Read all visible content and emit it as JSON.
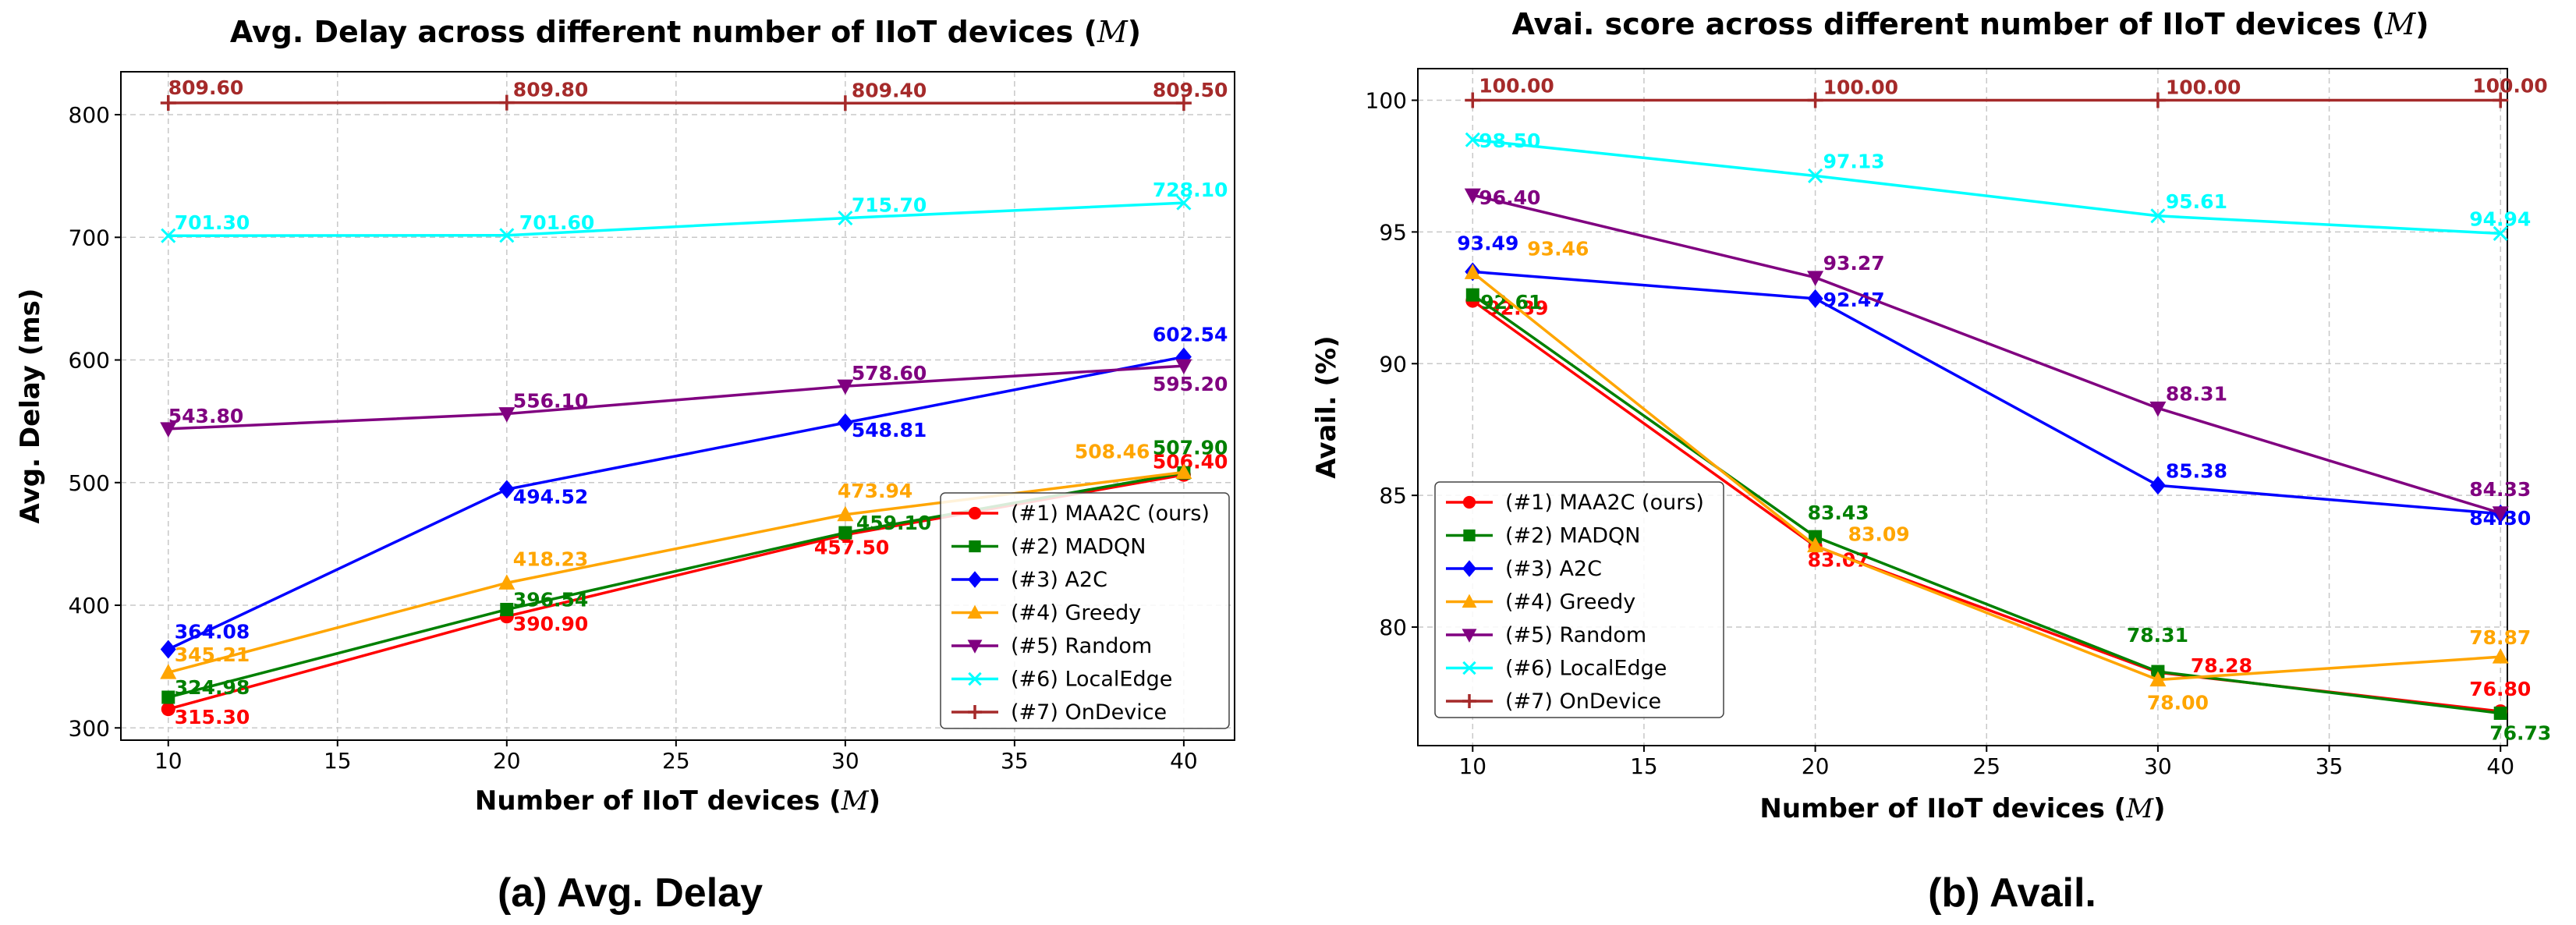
{
  "series_styles": [
    {
      "name": "(#1) MAA2C (ours)",
      "color": "#ff0000",
      "marker": "circle"
    },
    {
      "name": "(#2) MADQN",
      "color": "#008000",
      "marker": "square"
    },
    {
      "name": "(#3) A2C",
      "color": "#0000ff",
      "marker": "diamond"
    },
    {
      "name": "(#4) Greedy",
      "color": "#ffa500",
      "marker": "triangle-up"
    },
    {
      "name": "(#5) Random",
      "color": "#800080",
      "marker": "triangle-down"
    },
    {
      "name": "(#6) LocalEdge",
      "color": "#00ffff",
      "marker": "x"
    },
    {
      "name": "(#7) OnDevice",
      "color": "#a52a2a",
      "marker": "plus"
    }
  ],
  "chart_data": [
    {
      "type": "line",
      "title": "Avg. Delay across different number of IIoT devices (M)",
      "xlabel": "Number of IIoT devices (M)",
      "ylabel": "Avg. Delay (ms)",
      "caption": "(a) Avg. Delay",
      "x": [
        10,
        20,
        30,
        40
      ],
      "xlim": [
        8.6,
        41.5
      ],
      "ylim": [
        290,
        835
      ],
      "xticks": [
        10,
        15,
        20,
        25,
        30,
        35,
        40
      ],
      "yticks": [
        300,
        400,
        500,
        600,
        700,
        800
      ],
      "grid": true,
      "legend": "lower-right",
      "series": [
        {
          "name": "(#1) MAA2C (ours)",
          "values": [
            315.3,
            390.9,
            457.5,
            506.4
          ],
          "labels": [
            "315.30",
            "390.90",
            "457.50",
            "506.40"
          ]
        },
        {
          "name": "(#2) MADQN",
          "values": [
            324.98,
            396.54,
            459.1,
            507.9
          ],
          "labels": [
            "324.98",
            "396.54",
            "459.10",
            "507.90"
          ]
        },
        {
          "name": "(#3) A2C",
          "values": [
            364.08,
            494.52,
            548.81,
            602.54
          ],
          "labels": [
            "364.08",
            "494.52",
            "548.81",
            "602.54"
          ]
        },
        {
          "name": "(#4) Greedy",
          "values": [
            345.21,
            418.23,
            473.94,
            508.46
          ],
          "labels": [
            "345.21",
            "418.23",
            "473.94",
            "508.46"
          ]
        },
        {
          "name": "(#5) Random",
          "values": [
            543.8,
            556.1,
            578.6,
            595.2
          ],
          "labels": [
            "543.80",
            "556.10",
            "578.60",
            "595.20"
          ]
        },
        {
          "name": "(#6) LocalEdge",
          "values": [
            701.3,
            701.6,
            715.7,
            728.1
          ],
          "labels": [
            "701.30",
            "701.60",
            "715.70",
            "728.10"
          ]
        },
        {
          "name": "(#7) OnDevice",
          "values": [
            809.6,
            809.8,
            809.4,
            809.5
          ],
          "labels": [
            "809.60",
            "809.80",
            "809.40",
            "809.50"
          ]
        }
      ]
    },
    {
      "type": "line",
      "title": "Avai. score across different number of IIoT devices (M)",
      "xlabel": "Number of IIoT devices (M)",
      "ylabel": "Avail. (%)",
      "caption": "(b) Avail.",
      "x": [
        10,
        20,
        30,
        40
      ],
      "xlim": [
        8.4,
        40.2
      ],
      "ylim": [
        75.5,
        101.2
      ],
      "xticks": [
        10,
        15,
        20,
        25,
        30,
        35,
        40
      ],
      "yticks": [
        80,
        85,
        90,
        95,
        100
      ],
      "grid": true,
      "legend": "lower-left",
      "series": [
        {
          "name": "(#1) MAA2C (ours)",
          "values": [
            92.39,
            83.07,
            78.28,
            76.8
          ],
          "labels": [
            "92.39",
            "83.07",
            "78.28",
            "76.80"
          ]
        },
        {
          "name": "(#2) MADQN",
          "values": [
            92.61,
            83.43,
            78.31,
            76.73
          ],
          "labels": [
            "92.61",
            "83.43",
            "78.31",
            "76.73"
          ]
        },
        {
          "name": "(#3) A2C",
          "values": [
            93.49,
            92.47,
            85.38,
            84.3
          ],
          "labels": [
            "93.49",
            "92.47",
            "85.38",
            "84.30"
          ]
        },
        {
          "name": "(#4) Greedy",
          "values": [
            93.46,
            83.09,
            78.0,
            78.87
          ],
          "labels": [
            "93.46",
            "83.09",
            "78.00",
            "78.87"
          ]
        },
        {
          "name": "(#5) Random",
          "values": [
            96.4,
            93.27,
            88.31,
            84.33
          ],
          "labels": [
            "96.40",
            "93.27",
            "88.31",
            "84.33"
          ]
        },
        {
          "name": "(#6) LocalEdge",
          "values": [
            98.5,
            97.13,
            95.61,
            94.94
          ],
          "labels": [
            "98.50",
            "97.13",
            "95.61",
            "94.94"
          ]
        },
        {
          "name": "(#7) OnDevice",
          "values": [
            100.0,
            100.0,
            100.0,
            100.0
          ],
          "labels": [
            "100.00",
            "100.00",
            "100.00",
            "100.00"
          ]
        }
      ]
    }
  ]
}
